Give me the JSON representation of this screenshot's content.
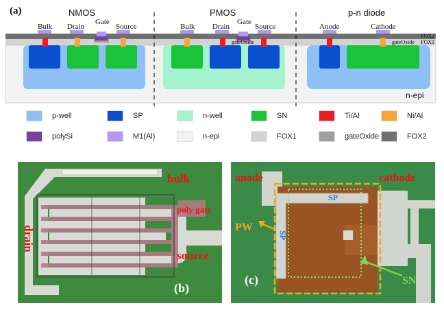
{
  "panel_a": {
    "label": "(a)",
    "devices": {
      "nmos": "NMOS",
      "pmos": "PMOS",
      "diode": "p-n diode"
    },
    "terminals": {
      "bulk": "Bulk",
      "drain": "Drain",
      "gate": "Gate",
      "source": "Source",
      "anode": "Anode",
      "cathode": "Cathode"
    },
    "layers": {
      "fox2": "FOX2",
      "fox1": "FOX1",
      "gate_oxide": "gateOxide",
      "nepi": "n-epi"
    }
  },
  "legend": [
    {
      "label": "p-well",
      "color": "#8ec0f5"
    },
    {
      "label": "SP",
      "color": "#0b4fd1"
    },
    {
      "label": "n-well",
      "color": "#a5f2d0"
    },
    {
      "label": "SN",
      "color": "#19c43a"
    },
    {
      "label": "Ti/Al",
      "color": "#ec1c24"
    },
    {
      "label": "Ni/Al",
      "color": "#f7a43a"
    },
    {
      "label": "polySi",
      "color": "#7a3e9d"
    },
    {
      "label": "M1(Al)",
      "color": "#b397f0"
    },
    {
      "label": "n-epi",
      "color": "#f2f2f2"
    },
    {
      "label": "FOX1",
      "color": "#d3d3d3"
    },
    {
      "label": "gateOxide",
      "color": "#9e9e9e"
    },
    {
      "label": "FOX2",
      "color": "#707070"
    }
  ],
  "panel_b": {
    "label": "(b)",
    "bulk": "bulk",
    "poly_gate": "poly gate",
    "drain": "drain",
    "source": "source"
  },
  "panel_c": {
    "label": "(c)",
    "anode": "anode",
    "cathode": "cathode",
    "sp_top": "SP",
    "sp_side": "SP",
    "pw": "PW",
    "sn": "SN"
  }
}
